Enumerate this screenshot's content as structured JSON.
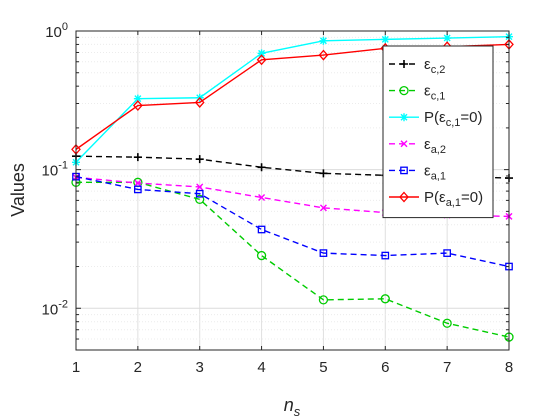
{
  "chart_data": {
    "type": "line",
    "xlabel": "n_s",
    "ylabel": "Values",
    "x": [
      1,
      2,
      3,
      4,
      5,
      6,
      7,
      8
    ],
    "xlim": [
      1,
      8
    ],
    "ylim": [
      0.005,
      1
    ],
    "yscale": "log",
    "grid": true,
    "minor_grid": true,
    "legend_position": "top-right",
    "x_ticks": [
      "1",
      "2",
      "3",
      "4",
      "5",
      "6",
      "7",
      "8"
    ],
    "y_ticks": [
      {
        "value": 0.01,
        "base": "10",
        "exp": "-2"
      },
      {
        "value": 0.1,
        "base": "10",
        "exp": "-1"
      },
      {
        "value": 1,
        "base": "10",
        "exp": "0"
      }
    ],
    "series": [
      {
        "name": "ε_{c,2}",
        "label_parts": [
          "ε",
          "c,2",
          ""
        ],
        "color": "#000000",
        "marker": "plus",
        "linestyle": "dashed",
        "values": [
          0.125,
          0.123,
          0.119,
          0.104,
          0.094,
          0.091,
          0.089,
          0.087
        ]
      },
      {
        "name": "ε_{c,1}",
        "label_parts": [
          "ε",
          "c,1",
          ""
        ],
        "color": "#00cc00",
        "marker": "circle",
        "linestyle": "dashed",
        "values": [
          0.081,
          0.081,
          0.061,
          0.024,
          0.0115,
          0.0117,
          0.0078,
          0.0062
        ]
      },
      {
        "name": "P(ε_{c,1}=0)",
        "label_parts": [
          "P(ε",
          "c,1",
          "=0)"
        ],
        "color": "#00ffff",
        "marker": "asterisk",
        "linestyle": "solid",
        "values": [
          0.113,
          0.325,
          0.33,
          0.69,
          0.85,
          0.87,
          0.89,
          0.91
        ]
      },
      {
        "name": "ε_{a,2}",
        "label_parts": [
          "ε",
          "a,2",
          ""
        ],
        "color": "#ff00ff",
        "marker": "x",
        "linestyle": "dashed",
        "values": [
          0.088,
          0.08,
          0.075,
          0.063,
          0.053,
          0.049,
          0.047,
          0.046
        ]
      },
      {
        "name": "ε_{a,1}",
        "label_parts": [
          "ε",
          "a,1",
          ""
        ],
        "color": "#0000ff",
        "marker": "square",
        "linestyle": "dashed",
        "values": [
          0.089,
          0.072,
          0.067,
          0.037,
          0.025,
          0.024,
          0.025,
          0.02
        ]
      },
      {
        "name": "P(ε_{a,1}=0)",
        "label_parts": [
          "P(ε",
          "a,1",
          "=0)"
        ],
        "color": "#ff0000",
        "marker": "diamond",
        "linestyle": "solid",
        "values": [
          0.14,
          0.29,
          0.305,
          0.62,
          0.67,
          0.75,
          0.77,
          0.8
        ]
      }
    ]
  }
}
